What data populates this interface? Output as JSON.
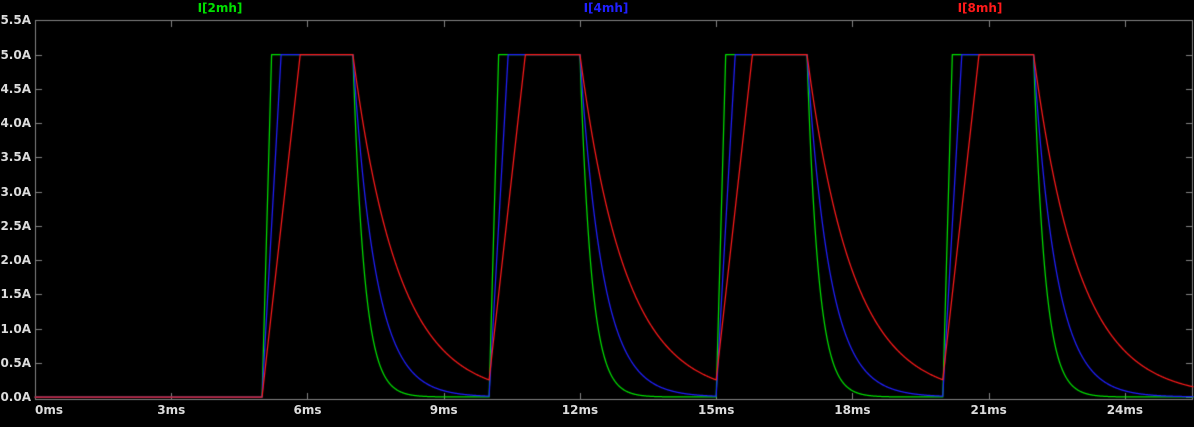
{
  "window": {
    "background": "#000000"
  },
  "chart_data": {
    "type": "line",
    "title": "",
    "x_unit": "ms",
    "y_unit": "A",
    "grid": false,
    "legend_position": "top",
    "axis_color": "#848484",
    "tick_label_color": "#DCDCDC",
    "x_range_ms": [
      0,
      25.5
    ],
    "y_range_a": [
      0,
      5.5
    ],
    "x_tick_labels": [
      "0ms",
      "3ms",
      "6ms",
      "9ms",
      "12ms",
      "15ms",
      "18ms",
      "21ms",
      "24ms"
    ],
    "x_tick_values": [
      0,
      3,
      6,
      9,
      12,
      15,
      18,
      21,
      24
    ],
    "y_tick_labels": [
      "5.5A",
      "5.0A",
      "4.5A",
      "4.0A",
      "3.5A",
      "3.0A",
      "2.5A",
      "2.0A",
      "1.5A",
      "1.0A",
      "0.5A",
      "0.0A"
    ],
    "y_tick_values": [
      5.5,
      5.0,
      4.5,
      4.0,
      3.5,
      3.0,
      2.5,
      2.0,
      1.5,
      1.0,
      0.5,
      0.0
    ],
    "series": [
      {
        "name": "I[2mh]",
        "color": "#00E000",
        "rise_ms": 0.21,
        "decay_tau_ms": 0.25
      },
      {
        "name": "I[4mh]",
        "color": "#2020FF",
        "rise_ms": 0.42,
        "decay_tau_ms": 0.5
      },
      {
        "name": "I[8mh]",
        "color": "#FF1A1A",
        "rise_ms": 0.84,
        "decay_tau_ms": 1.0
      }
    ],
    "pulse_train": {
      "amplitude_a": 5.0,
      "first_rise_ms": 5.0,
      "period_ms": 5.0,
      "on_duration_ms": 2.0,
      "num_pulses": 4,
      "baseline_a": 0.0,
      "description": "Each inductor current ramps linearly to 5A at pulse start, holds at 5A until pulse end, then decays exponentially with its own time constant."
    }
  }
}
